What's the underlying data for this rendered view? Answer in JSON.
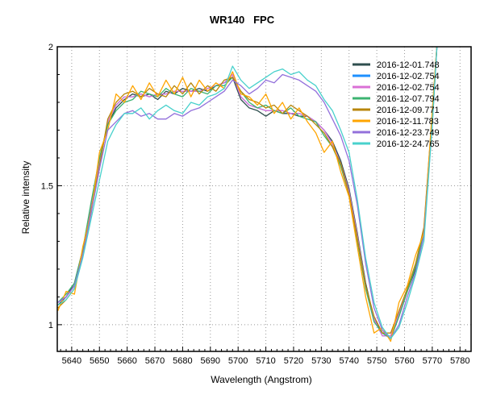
{
  "chart_data": {
    "type": "line",
    "title": "WR140   FPC",
    "xlabel": "Wavelength (Angstrom)",
    "ylabel": "Relative intensity",
    "xlim": [
      5634.8,
      5784
    ],
    "ylim": [
      0.904,
      2.0
    ],
    "xticks": [
      5640,
      5650,
      5660,
      5670,
      5680,
      5690,
      5700,
      5710,
      5720,
      5730,
      5740,
      5750,
      5760,
      5770,
      5780
    ],
    "yticks": [
      1,
      1.5,
      2
    ],
    "ytick_labels": [
      "1",
      "1.5",
      "2"
    ],
    "grid": true,
    "legend_position": "top-right",
    "x": [
      5635,
      5638,
      5641,
      5644,
      5647,
      5650,
      5653,
      5656,
      5659,
      5662,
      5665,
      5668,
      5671,
      5674,
      5677,
      5680,
      5683,
      5686,
      5689,
      5692,
      5695,
      5698,
      5701,
      5704,
      5707,
      5710,
      5713,
      5716,
      5719,
      5722,
      5725,
      5728,
      5731,
      5734,
      5737,
      5740,
      5743,
      5746,
      5749,
      5752,
      5755,
      5758,
      5761,
      5764,
      5767,
      5770
    ],
    "series": [
      {
        "name": "2016-12-01.748",
        "color": "#2f4f4f",
        "values": [
          1.07,
          1.1,
          1.15,
          1.27,
          1.43,
          1.59,
          1.72,
          1.78,
          1.81,
          1.83,
          1.82,
          1.83,
          1.81,
          1.84,
          1.83,
          1.85,
          1.84,
          1.85,
          1.84,
          1.86,
          1.87,
          1.89,
          1.81,
          1.78,
          1.77,
          1.75,
          1.77,
          1.76,
          1.76,
          1.75,
          1.75,
          1.73,
          1.7,
          1.66,
          1.59,
          1.49,
          1.33,
          1.15,
          1.02,
          0.97,
          0.95,
          1.03,
          1.12,
          1.2,
          1.33,
          1.74
        ]
      },
      {
        "name": "2016-12-02.754",
        "color": "#1e90ff",
        "values": [
          1.08,
          1.1,
          1.14,
          1.26,
          1.42,
          1.58,
          1.73,
          1.79,
          1.82,
          1.82,
          1.83,
          1.82,
          1.83,
          1.83,
          1.84,
          1.84,
          1.84,
          1.84,
          1.85,
          1.86,
          1.87,
          1.9,
          1.82,
          1.79,
          1.78,
          1.77,
          1.77,
          1.77,
          1.76,
          1.76,
          1.75,
          1.73,
          1.7,
          1.65,
          1.58,
          1.48,
          1.32,
          1.14,
          1.02,
          0.96,
          0.96,
          1.04,
          1.13,
          1.21,
          1.34,
          1.75
        ]
      },
      {
        "name": "2016-12-02.754",
        "color": "#da70d6",
        "values": [
          1.08,
          1.1,
          1.14,
          1.26,
          1.42,
          1.58,
          1.73,
          1.79,
          1.82,
          1.82,
          1.83,
          1.82,
          1.83,
          1.83,
          1.84,
          1.84,
          1.84,
          1.84,
          1.85,
          1.86,
          1.87,
          1.9,
          1.82,
          1.79,
          1.78,
          1.77,
          1.77,
          1.77,
          1.76,
          1.76,
          1.75,
          1.73,
          1.7,
          1.65,
          1.58,
          1.48,
          1.32,
          1.14,
          1.02,
          0.96,
          0.96,
          1.04,
          1.13,
          1.21,
          1.34,
          1.75
        ]
      },
      {
        "name": "2016-12-07.794",
        "color": "#3cb371",
        "values": [
          1.08,
          1.11,
          1.15,
          1.27,
          1.44,
          1.6,
          1.72,
          1.77,
          1.8,
          1.81,
          1.84,
          1.83,
          1.82,
          1.85,
          1.83,
          1.82,
          1.85,
          1.84,
          1.83,
          1.86,
          1.86,
          1.89,
          1.84,
          1.8,
          1.78,
          1.79,
          1.77,
          1.76,
          1.78,
          1.75,
          1.74,
          1.73,
          1.68,
          1.64,
          1.57,
          1.47,
          1.3,
          1.13,
          1.01,
          0.97,
          0.95,
          1.03,
          1.12,
          1.21,
          1.33,
          1.73
        ]
      },
      {
        "name": "2016-12-09.771",
        "color": "#b8860b",
        "values": [
          1.06,
          1.09,
          1.13,
          1.25,
          1.41,
          1.57,
          1.74,
          1.8,
          1.83,
          1.84,
          1.82,
          1.85,
          1.83,
          1.82,
          1.86,
          1.83,
          1.87,
          1.83,
          1.86,
          1.84,
          1.88,
          1.89,
          1.84,
          1.81,
          1.8,
          1.78,
          1.79,
          1.76,
          1.79,
          1.77,
          1.75,
          1.72,
          1.69,
          1.64,
          1.58,
          1.47,
          1.31,
          1.14,
          1.03,
          0.97,
          0.97,
          1.05,
          1.13,
          1.22,
          1.35,
          1.76
        ]
      },
      {
        "name": "2016-12-11.783",
        "color": "#ffa500",
        "values": [
          1.05,
          1.12,
          1.11,
          1.28,
          1.4,
          1.62,
          1.7,
          1.83,
          1.8,
          1.86,
          1.81,
          1.87,
          1.82,
          1.88,
          1.83,
          1.89,
          1.82,
          1.88,
          1.84,
          1.87,
          1.85,
          1.91,
          1.83,
          1.82,
          1.79,
          1.83,
          1.76,
          1.8,
          1.74,
          1.78,
          1.73,
          1.69,
          1.62,
          1.66,
          1.55,
          1.46,
          1.28,
          1.1,
          0.97,
          0.99,
          0.94,
          1.08,
          1.14,
          1.25,
          1.33,
          1.77
        ]
      },
      {
        "name": "2016-12-23.749",
        "color": "#9370db",
        "values": [
          1.08,
          1.1,
          1.14,
          1.25,
          1.4,
          1.56,
          1.7,
          1.73,
          1.76,
          1.77,
          1.75,
          1.76,
          1.74,
          1.74,
          1.76,
          1.75,
          1.77,
          1.78,
          1.8,
          1.82,
          1.84,
          1.88,
          1.86,
          1.83,
          1.85,
          1.88,
          1.87,
          1.9,
          1.89,
          1.88,
          1.86,
          1.84,
          1.8,
          1.74,
          1.68,
          1.59,
          1.43,
          1.22,
          1.06,
          0.98,
          0.95,
          1.0,
          1.1,
          1.19,
          1.32,
          1.72
        ]
      },
      {
        "name": "2016-12-24.765",
        "color": "#48d1cc",
        "values": [
          1.07,
          1.09,
          1.13,
          1.24,
          1.38,
          1.52,
          1.66,
          1.72,
          1.76,
          1.76,
          1.78,
          1.74,
          1.77,
          1.79,
          1.77,
          1.76,
          1.8,
          1.79,
          1.82,
          1.83,
          1.85,
          1.93,
          1.88,
          1.85,
          1.87,
          1.89,
          1.91,
          1.92,
          1.9,
          1.91,
          1.88,
          1.86,
          1.81,
          1.77,
          1.7,
          1.62,
          1.45,
          1.24,
          1.08,
          0.99,
          0.95,
          0.99,
          1.08,
          1.18,
          1.3,
          1.72
        ]
      }
    ]
  }
}
